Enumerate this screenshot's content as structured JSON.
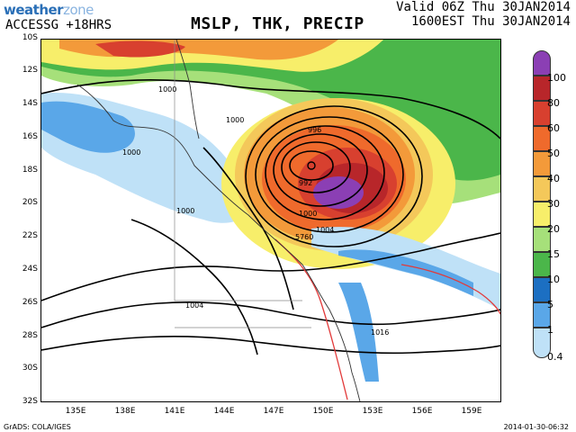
{
  "header": {
    "logo_main": "weather",
    "logo_accent": "zone",
    "model": "ACCESSG +18HRS",
    "title": "MSLP, THK, PRECIP",
    "valid_utc": "Valid 06Z Thu 30JAN2014",
    "valid_local": "1600EST Thu 30JAN2014"
  },
  "axes": {
    "lat_labels": [
      "10S",
      "12S",
      "14S",
      "16S",
      "18S",
      "20S",
      "22S",
      "24S",
      "26S",
      "28S",
      "30S",
      "32S"
    ],
    "lon_labels": [
      "135E",
      "138E",
      "141E",
      "144E",
      "147E",
      "150E",
      "153E",
      "156E",
      "159E"
    ]
  },
  "legend": {
    "levels": [
      "100",
      "80",
      "60",
      "50",
      "40",
      "30",
      "20",
      "15",
      "10",
      "5",
      "1",
      "0.4"
    ],
    "colors": [
      "#8b3fb4",
      "#b8262a",
      "#d8402f",
      "#ef6a2c",
      "#f39a3a",
      "#f4c85a",
      "#f7ee6a",
      "#a6e07a",
      "#4bb64a",
      "#1c6fc2",
      "#5aa7e8",
      "#bfe1f7"
    ]
  },
  "contours": {
    "isobar_labels": [
      "1000",
      "1000",
      "1000",
      "1000",
      "1000",
      "1004",
      "1004",
      "1016",
      "996",
      "992"
    ],
    "thickness_label": "5760"
  },
  "footer": {
    "credit": "GrADS: COLA/IGES",
    "timestamp": "2014-01-30-06:32"
  }
}
